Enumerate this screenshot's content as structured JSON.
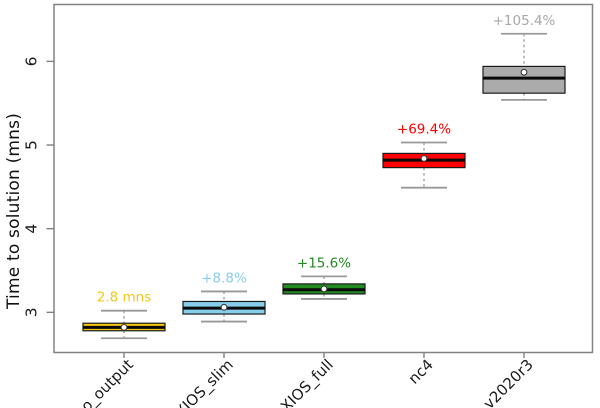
{
  "figure": {
    "background": "#ffffff",
    "frame_color": "#828282"
  },
  "chart_data": {
    "type": "boxplot",
    "title": "",
    "xlabel": "",
    "ylabel": "Time to solution (mns)",
    "ylim": [
      2.52,
      6.68
    ],
    "yticks": [
      "3",
      "4",
      "5",
      "6"
    ],
    "grid": false,
    "legend": "none",
    "categories": [
      "no_output",
      "XIOS_slim",
      "XIOS_full",
      "nc4",
      "v2020r3"
    ],
    "boxes": [
      {
        "label": "no_output",
        "annotation": "2.8 mns",
        "color": "#F5C710",
        "annotation_color": "#F5C710",
        "low": 2.69,
        "q1": 2.78,
        "median": 2.82,
        "q3": 2.87,
        "high": 3.02,
        "mean": 2.82
      },
      {
        "label": "XIOS_slim",
        "annotation": "+8.8%",
        "color": "#87CEEB",
        "annotation_color": "#87CEEB",
        "low": 2.89,
        "q1": 2.98,
        "median": 3.05,
        "q3": 3.13,
        "high": 3.25,
        "mean": 3.06
      },
      {
        "label": "XIOS_full",
        "annotation": "+15.6%",
        "color": "#228B22",
        "annotation_color": "#228B22",
        "low": 3.16,
        "q1": 3.22,
        "median": 3.27,
        "q3": 3.34,
        "high": 3.43,
        "mean": 3.28
      },
      {
        "label": "nc4",
        "annotation": "+69.4%",
        "color": "#FF0000",
        "annotation_color": "#FF0000",
        "low": 4.49,
        "q1": 4.73,
        "median": 4.82,
        "q3": 4.9,
        "high": 5.03,
        "mean": 4.84
      },
      {
        "label": "v2020r3",
        "annotation": "+105.4%",
        "color": "#ABABAB",
        "annotation_color": "#A9A9A9",
        "low": 5.54,
        "q1": 5.62,
        "median": 5.8,
        "q3": 5.94,
        "high": 6.33,
        "mean": 5.87
      }
    ],
    "style": {
      "whisker_color": "#909090",
      "cap_color": "#999999",
      "box_border_color": "#1a1a1a",
      "median_color": "#0a0a0a",
      "mean_marker": "white-circle",
      "tick_label_color": "#1a1a1a",
      "axis_label_color": "#111111"
    }
  }
}
